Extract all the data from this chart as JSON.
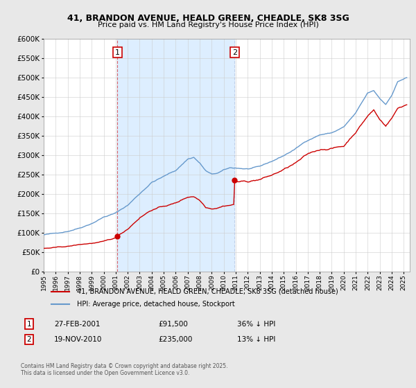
{
  "title": "41, BRANDON AVENUE, HEALD GREEN, CHEADLE, SK8 3SG",
  "subtitle": "Price paid vs. HM Land Registry's House Price Index (HPI)",
  "background_color": "#e8e8e8",
  "plot_bg_color": "#ffffff",
  "legend_label_red": "41, BRANDON AVENUE, HEALD GREEN, CHEADLE, SK8 3SG (detached house)",
  "legend_label_blue": "HPI: Average price, detached house, Stockport",
  "annotation1_date": "27-FEB-2001",
  "annotation1_price": "£91,500",
  "annotation1_hpi": "36% ↓ HPI",
  "annotation2_date": "19-NOV-2010",
  "annotation2_price": "£235,000",
  "annotation2_hpi": "13% ↓ HPI",
  "footer": "Contains HM Land Registry data © Crown copyright and database right 2025.\nThis data is licensed under the Open Government Licence v3.0.",
  "ylim": [
    0,
    600000
  ],
  "yticks": [
    0,
    50000,
    100000,
    150000,
    200000,
    250000,
    300000,
    350000,
    400000,
    450000,
    500000,
    550000,
    600000
  ],
  "sale1_year": 2001.15,
  "sale1_value": 91500,
  "sale2_year": 2010.9,
  "sale2_value": 235000,
  "red_line_color": "#cc0000",
  "blue_line_color": "#6699cc",
  "shade_color": "#ddeeff",
  "vline1_color": "#cc0000",
  "vline2_color": "#aabbdd"
}
